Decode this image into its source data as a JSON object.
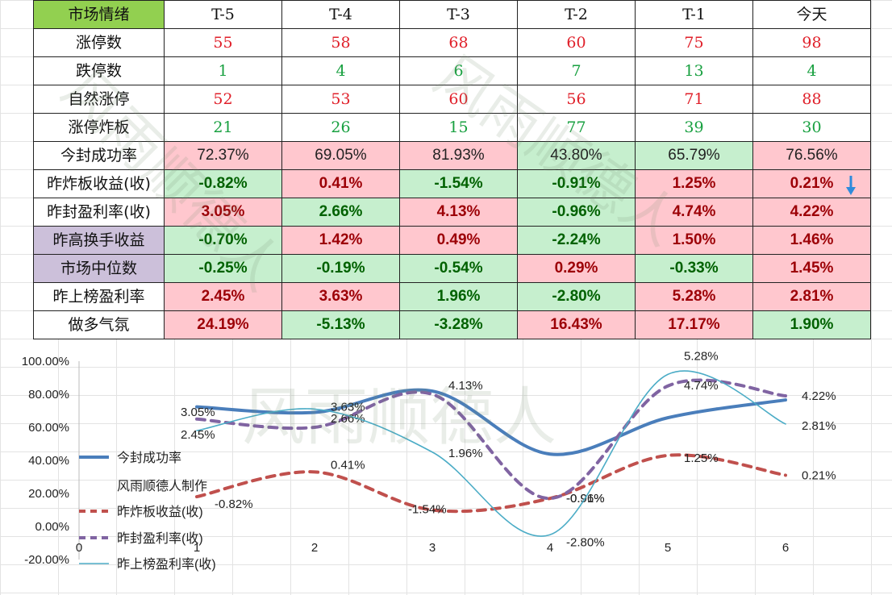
{
  "table": {
    "headers": [
      "市场情绪",
      "T-5",
      "T-4",
      "T-3",
      "T-2",
      "T-1",
      "今天"
    ],
    "rows": [
      {
        "label": "涨停数",
        "values": [
          "55",
          "58",
          "68",
          "60",
          "75",
          "98"
        ]
      },
      {
        "label": "跌停数",
        "values": [
          "1",
          "4",
          "6",
          "7",
          "13",
          "4"
        ]
      },
      {
        "label": "自然涨停",
        "values": [
          "52",
          "53",
          "60",
          "56",
          "71",
          "88"
        ]
      },
      {
        "label": "涨停炸板",
        "values": [
          "21",
          "26",
          "15",
          "77",
          "39",
          "30"
        ]
      },
      {
        "label": "今封成功率",
        "values": [
          "72.37%",
          "69.05%",
          "81.93%",
          "43.80%",
          "65.79%",
          "76.56%"
        ]
      },
      {
        "label": "昨炸板收益(收)",
        "values": [
          "-0.82%",
          "0.41%",
          "-1.54%",
          "-0.91%",
          "1.25%",
          "0.21%"
        ]
      },
      {
        "label": "昨封盈利率(收)",
        "values": [
          "3.05%",
          "2.66%",
          "4.13%",
          "-0.96%",
          "4.74%",
          "4.22%"
        ]
      },
      {
        "label": "昨高换手收益",
        "values": [
          "-0.70%",
          "1.42%",
          "0.49%",
          "-2.24%",
          "1.50%",
          "1.46%"
        ]
      },
      {
        "label": "市场中位数",
        "values": [
          "-0.25%",
          "-0.19%",
          "-0.54%",
          "0.29%",
          "-0.33%",
          "1.45%"
        ]
      },
      {
        "label": "昨上榜盈利率",
        "values": [
          "2.45%",
          "3.63%",
          "1.96%",
          "-2.80%",
          "5.28%",
          "2.81%"
        ]
      },
      {
        "label": "做多气氛",
        "values": [
          "24.19%",
          "-5.13%",
          "-3.28%",
          "16.43%",
          "17.17%",
          "1.90%"
        ]
      }
    ]
  },
  "icons": {
    "trend": "down-arrow-icon"
  },
  "colors": {
    "header_green": "#92d050",
    "purple_label": "#ccc0da",
    "pink": "#ffc7ce",
    "green": "#c6efce",
    "red_text": "#e0202a",
    "green_text": "#18a040"
  },
  "watermark": "风雨顺德人",
  "chart_data": {
    "type": "line",
    "x": [
      1,
      2,
      3,
      4,
      5,
      6
    ],
    "xticks": [
      "0",
      "1",
      "2",
      "3",
      "4",
      "5",
      "6"
    ],
    "yticks": [
      "100.00%",
      "80.00%",
      "60.00%",
      "40.00%",
      "20.00%",
      "0.00%",
      "-20.00%"
    ],
    "ylim": [
      -20,
      100
    ],
    "xlim": [
      0,
      7.2
    ],
    "legend_note": "风雨顺德人制作",
    "series": [
      {
        "name": "今封成功率",
        "values": [
          72.37,
          69.05,
          81.93,
          43.8,
          65.79,
          76.56
        ],
        "color": "#4a7ebb",
        "style": "solid",
        "width": 4,
        "labels": []
      },
      {
        "name": "昨炸板收益(收)",
        "values": [
          18,
          33,
          10,
          17,
          43,
          31
        ],
        "color": "#c0504d",
        "style": "dashed",
        "width": 4,
        "labels": [
          "-0.82%",
          "0.41%",
          "-1.54%",
          "-0.91%",
          "1.25%",
          "0.21%"
        ]
      },
      {
        "name": "昨封盈利率(收)",
        "values": [
          65,
          60,
          80,
          17,
          85,
          79
        ],
        "color": "#8064a2",
        "style": "dashed",
        "width": 4,
        "labels": [
          "3.05%",
          "2.66%",
          "4.13%",
          "-0.96%",
          "4.74%",
          "4.22%"
        ]
      },
      {
        "name": "昨上榜盈利率(收)",
        "values": [
          58,
          71,
          45,
          -5,
          92,
          62
        ],
        "color": "#4bacc6",
        "style": "solid",
        "width": 1.6,
        "labels": [
          "2.45%",
          "3.63%",
          "1.96%",
          "-2.80%",
          "5.28%",
          "2.81%"
        ]
      }
    ]
  }
}
